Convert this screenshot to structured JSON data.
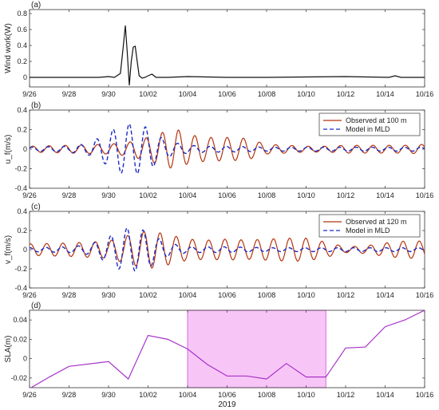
{
  "chart_data": [
    {
      "panel": "(a)",
      "type": "line",
      "ylabel": "Wind work(W)",
      "xlabel": "",
      "xlim": [
        0,
        20
      ],
      "ylim": [
        -0.12,
        0.85
      ],
      "x_tick_labels": [
        "9/26",
        "9/28",
        "9/30",
        "10/02",
        "10/04",
        "10/06",
        "10/08",
        "10/10",
        "10/12",
        "10/14",
        "10/16"
      ],
      "y_ticks": [
        0,
        0.2,
        0.4,
        0.6,
        0.8
      ],
      "y_tick_labels": [
        "0",
        "0.2",
        "0.4",
        "0.6",
        "0.8"
      ],
      "series": [
        {
          "color": "#111111",
          "x": [
            0,
            3.5,
            4.0,
            4.3,
            4.6,
            4.75,
            4.85,
            4.95,
            5.05,
            5.15,
            5.25,
            5.35,
            5.45,
            5.55,
            5.7,
            5.85,
            6.0,
            6.2,
            6.4,
            6.6,
            7,
            8,
            10,
            12,
            16,
            18.2,
            18.5,
            18.8,
            20
          ],
          "y": [
            0,
            0,
            0.01,
            0,
            0.05,
            0.4,
            0.65,
            0.3,
            -0.1,
            0.2,
            0.38,
            0.39,
            0.2,
            0.02,
            -0.01,
            0,
            0.02,
            0.04,
            0,
            0,
            0,
            0.01,
            0,
            0,
            0.01,
            0,
            0.02,
            0,
            0
          ]
        }
      ]
    },
    {
      "panel": "(b)",
      "type": "line",
      "ylabel": "u_f(m/s)",
      "xlabel": "",
      "xlim": [
        0,
        20
      ],
      "ylim": [
        -0.4,
        0.4
      ],
      "x_tick_labels": [
        "9/26",
        "9/28",
        "9/30",
        "10/02",
        "10/04",
        "10/06",
        "10/08",
        "10/10",
        "10/12",
        "10/14",
        "10/16"
      ],
      "y_ticks": [
        -0.4,
        -0.2,
        0,
        0.2,
        0.4
      ],
      "y_tick_labels": [
        "-0.4",
        "-0.2",
        "0",
        "0.2",
        "0.4"
      ],
      "legend": {
        "position": "top-right",
        "entries": [
          "Observed at 100 m",
          "Model in MLD"
        ]
      },
      "series": [
        {
          "name": "Observed at 100 m",
          "color": "#b5340f",
          "dash": "solid",
          "period_days": 0.82,
          "phase": 0.3,
          "amp_x": [
            0,
            2,
            4,
            5,
            6,
            7,
            7.5,
            8,
            9,
            10,
            11,
            12,
            13,
            14,
            15,
            16,
            17,
            18,
            19,
            20
          ],
          "amp_y": [
            0.03,
            0.04,
            0.05,
            0.07,
            0.12,
            0.19,
            0.2,
            0.15,
            0.12,
            0.12,
            0.11,
            0.05,
            0.04,
            0.03,
            0.03,
            0.04,
            0.04,
            0.04,
            0.04,
            0.05
          ]
        },
        {
          "name": "Model in MLD",
          "color": "#1a2bc7",
          "dash": "dashed",
          "period_days": 0.82,
          "phase": 0.6,
          "amp_x": [
            0,
            2,
            3,
            4,
            4.5,
            5,
            5.5,
            6,
            6.5,
            7,
            8,
            9,
            10,
            12,
            14,
            16,
            18,
            20
          ],
          "amp_y": [
            0.02,
            0.03,
            0.06,
            0.17,
            0.24,
            0.26,
            0.25,
            0.22,
            0.14,
            0.08,
            0.04,
            0.03,
            0.03,
            0.02,
            0.02,
            0.02,
            0.02,
            0.02
          ]
        }
      ]
    },
    {
      "panel": "(c)",
      "type": "line",
      "ylabel": "v_f(m/s)",
      "xlabel": "",
      "xlim": [
        0,
        20
      ],
      "ylim": [
        -0.4,
        0.4
      ],
      "x_tick_labels": [
        "9/26",
        "9/28",
        "9/30",
        "10/02",
        "10/04",
        "10/06",
        "10/08",
        "10/10",
        "10/12",
        "10/14",
        "10/16"
      ],
      "y_ticks": [
        -0.4,
        -0.2,
        0,
        0.2,
        0.4
      ],
      "y_tick_labels": [
        "-0.4",
        "-0.2",
        "0",
        "0.2",
        "0.4"
      ],
      "legend": {
        "position": "top-right",
        "entries": [
          "Observed at 120 m",
          "Model in MLD"
        ]
      },
      "series": [
        {
          "name": "Observed at 120 m",
          "color": "#b5340f",
          "dash": "solid",
          "period_days": 0.82,
          "phase": 1.2,
          "amp_x": [
            0,
            2,
            4,
            5,
            6,
            7,
            8,
            9,
            10,
            11,
            12,
            13,
            14,
            15,
            16,
            17,
            18,
            19,
            20
          ],
          "amp_y": [
            0.06,
            0.07,
            0.09,
            0.15,
            0.2,
            0.16,
            0.11,
            0.1,
            0.11,
            0.1,
            0.11,
            0.12,
            0.12,
            0.08,
            0.03,
            0.04,
            0.07,
            0.09,
            0.09
          ]
        },
        {
          "name": "Model in MLD",
          "color": "#1a2bc7",
          "dash": "dashed",
          "period_days": 0.82,
          "phase": 1.5,
          "amp_x": [
            0,
            2,
            3,
            4,
            4.5,
            5,
            5.5,
            6,
            6.5,
            7,
            8,
            9,
            10,
            12,
            14,
            16,
            18,
            20
          ],
          "amp_y": [
            0.02,
            0.03,
            0.05,
            0.13,
            0.2,
            0.23,
            0.22,
            0.19,
            0.12,
            0.07,
            0.03,
            0.03,
            0.03,
            0.02,
            0.02,
            0.02,
            0.02,
            0.02
          ]
        }
      ]
    },
    {
      "panel": "(d)",
      "type": "line",
      "ylabel": "SLA(m)",
      "xlabel": "2019",
      "xlim": [
        0,
        20
      ],
      "ylim": [
        -0.03,
        0.05
      ],
      "x_tick_labels": [
        "9/26",
        "9/28",
        "9/30",
        "10/02",
        "10/04",
        "10/06",
        "10/08",
        "10/10",
        "10/12",
        "10/14",
        "10/16"
      ],
      "y_ticks": [
        -0.02,
        0,
        0.02,
        0.04
      ],
      "y_tick_labels": [
        "-0.02",
        "0",
        "0.02",
        "0.04"
      ],
      "shaded_region": {
        "x_start": 8,
        "x_end": 15,
        "color": "#f7c6f7"
      },
      "series": [
        {
          "color": "#a833c9",
          "x": [
            0,
            1,
            2,
            4,
            5,
            6,
            7,
            8,
            9,
            10,
            11,
            12,
            13,
            14,
            15,
            16,
            17,
            18,
            19,
            20
          ],
          "y": [
            -0.031,
            -0.019,
            -0.008,
            -0.003,
            -0.021,
            0.024,
            0.02,
            0.01,
            -0.006,
            -0.018,
            -0.018,
            -0.021,
            -0.005,
            -0.019,
            -0.019,
            0.011,
            0.012,
            0.033,
            0.04,
            0.05
          ]
        }
      ]
    }
  ]
}
